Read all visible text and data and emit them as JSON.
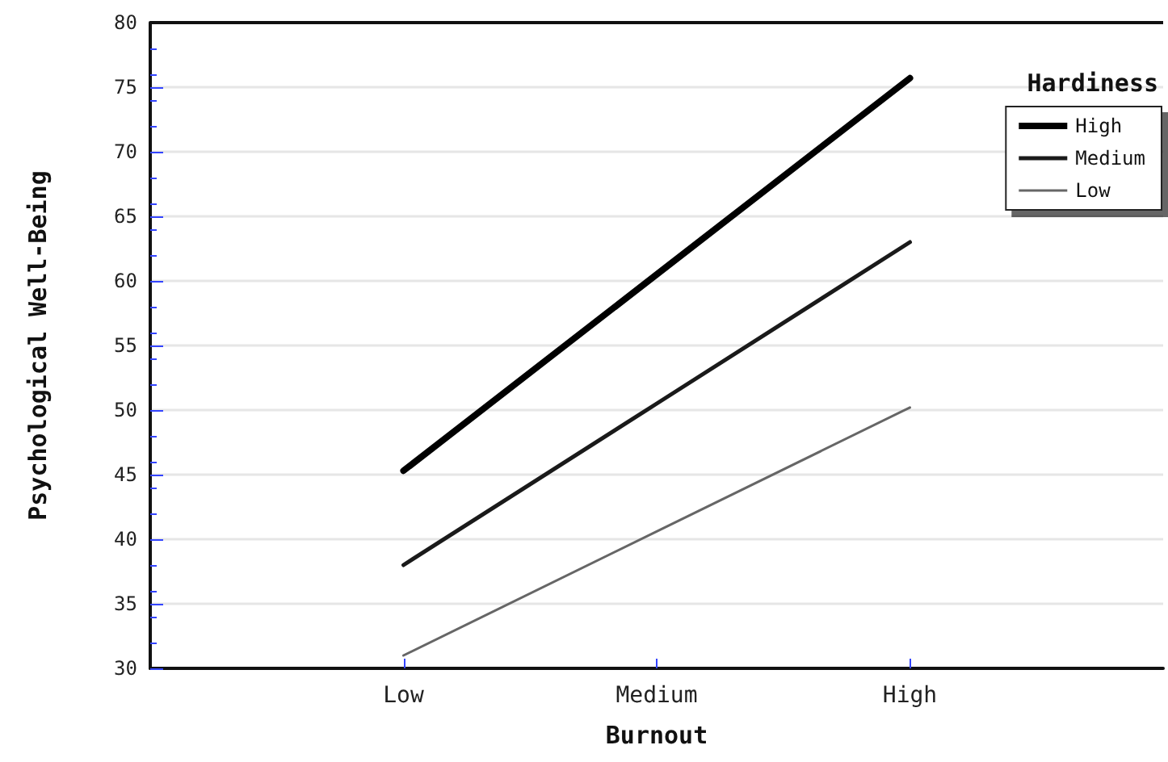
{
  "chart_data": {
    "type": "line",
    "xlabel": "Burnout",
    "ylabel": "Psychological Well-Being",
    "legend_title": "Hardiness",
    "categories": [
      null,
      "Low",
      "Medium",
      "High",
      null
    ],
    "series": [
      {
        "name": "High",
        "color": "#000000",
        "values": [
          null,
          45.3,
          60.5,
          75.7,
          null
        ]
      },
      {
        "name": "Medium",
        "color": "#1a1a1a",
        "values": [
          null,
          38,
          50.5,
          63,
          null
        ]
      },
      {
        "name": "Low",
        "color": "#666666",
        "values": [
          null,
          31,
          40.6,
          50.2,
          null
        ]
      }
    ],
    "ylim": [
      30,
      80
    ],
    "yticks": [
      30,
      35,
      40,
      45,
      50,
      55,
      60,
      65,
      70,
      75,
      80
    ],
    "grid": "y",
    "legend": "top right",
    "marker": "none",
    "line_style": "solid"
  }
}
